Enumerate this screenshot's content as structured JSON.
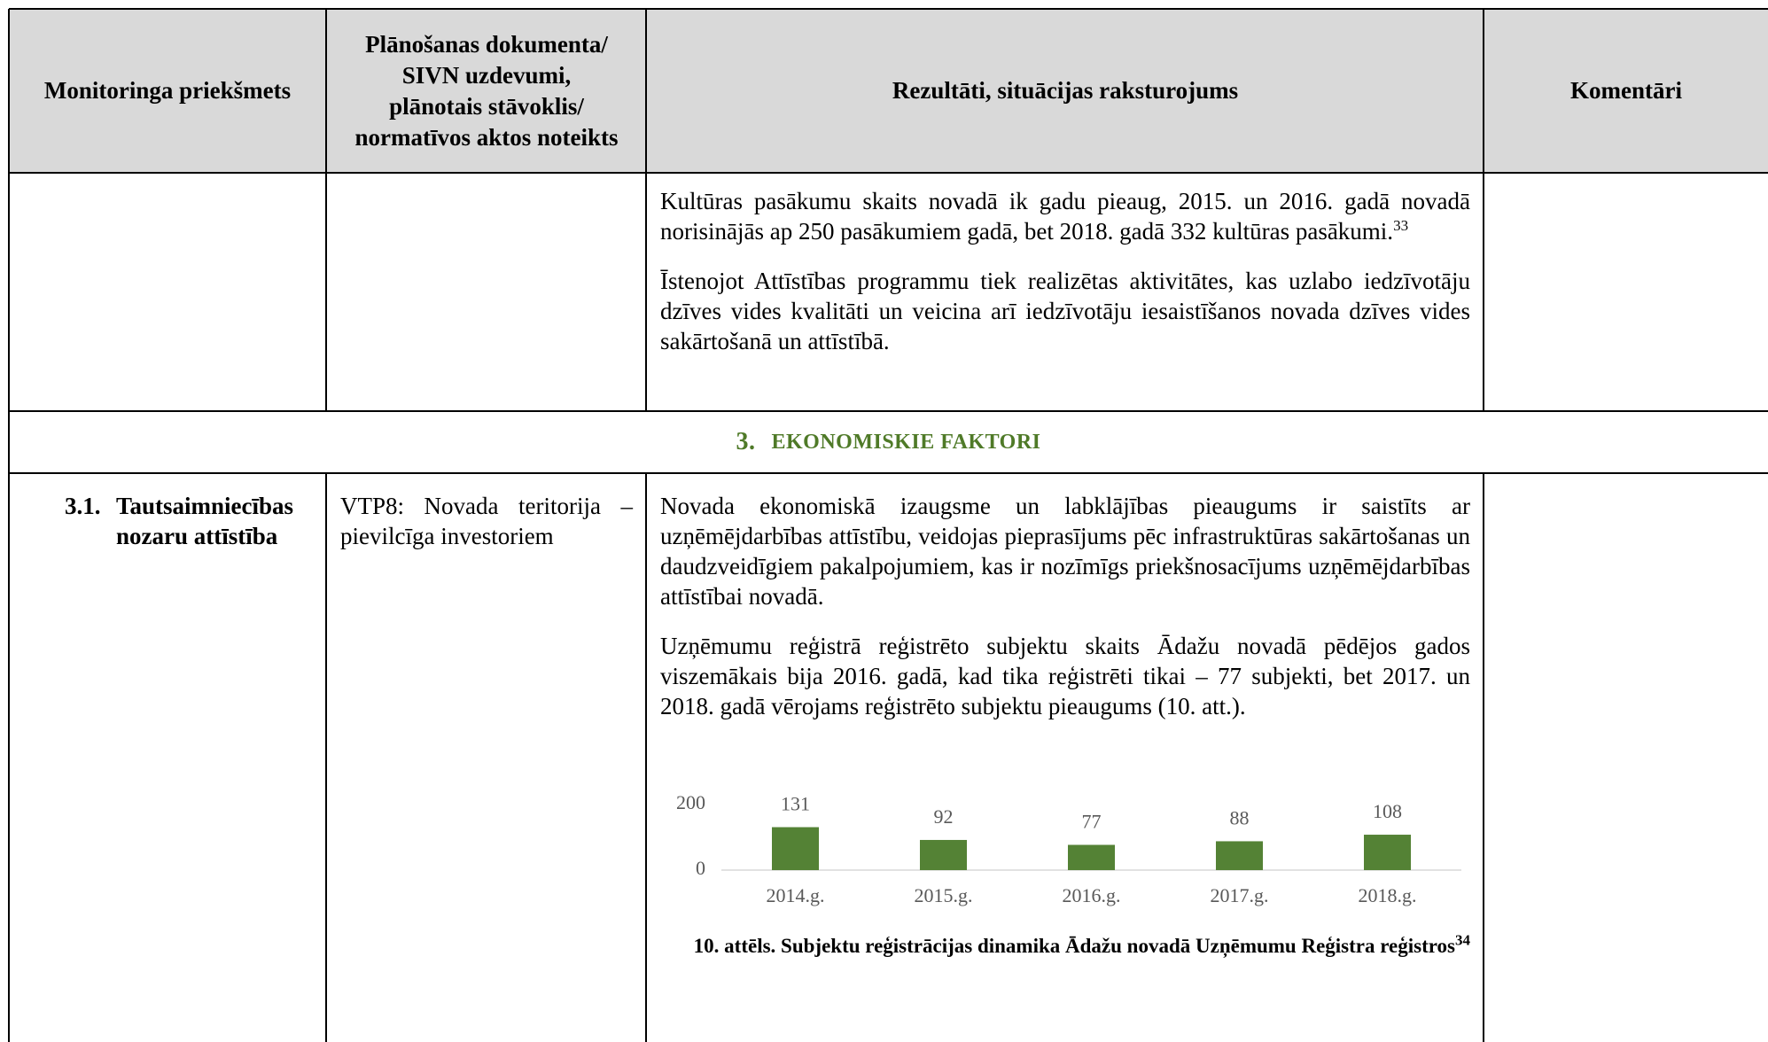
{
  "header": [
    "Monitoringa priekšmets",
    "Plānošanas dokumenta/ SIVN uzdevumi, plānotais stāvoklis/ normatīvos aktos noteikts",
    "Rezultāti, situācijas raksturojums",
    "Komentāri"
  ],
  "rows": [
    {
      "results": [
        {
          "text": "Kultūras pasākumu skaits novadā ik gadu pieaug, 2015. un 2016. gadā novadā norisinājās ap 250 pasākumiem gadā, bet 2018. gadā 332 kultūras pasākumi.",
          "footnote": "33"
        },
        {
          "text": "Īstenojot Attīstības programmu tiek realizētas aktivitātes, kas uzlabo iedzīvotāju dzīves vides kvalitāti un veicina arī iedzīvotāju iesaistīšanos novada dzīves vides sakārtošanā un attīstībā."
        }
      ]
    },
    {
      "section_number": "3.",
      "section_title": "EKONOMISKIE FAKTORI"
    },
    {
      "subject_number": "3.1.",
      "subject": "Tautsaimniecības nozaru attīstība",
      "task": "VTP8: Novada teritorija – pievilcīga investoriem",
      "results": [
        {
          "text": "Novada ekonomiskā izaugsme un labklājības pieaugums ir saistīts ar uzņēmējdarbības attīstību, veidojas pieprasījums pēc infrastruktūras sakārtošanas un daudzveidīgiem pakalpojumiem, kas ir nozīmīgs priekšnosacījums uzņēmējdarbības attīstībai novadā."
        },
        {
          "text": "Uzņēmumu reģistrā reģistrēto subjektu skaits Ādažu novadā pēdējos gados viszemākais bija 2016. gadā, kad tika reģistrēti tikai – 77 subjekti, bet 2017. un 2018. gadā vērojams reģistrēto subjektu pieaugums (10. att.)."
        }
      ],
      "figure": {
        "chart_data": {
          "type": "bar",
          "categories": [
            "2014.g.",
            "2015.g.",
            "2016.g.",
            "2017.g.",
            "2018.g."
          ],
          "values": [
            131,
            92,
            77,
            88,
            108
          ],
          "color": "#548235",
          "ylim": [
            0,
            200
          ],
          "yticks": [
            0,
            200
          ]
        },
        "caption_number": "10. attēls.",
        "caption": "Subjektu reģistrācijas dinamika Ādažu novadā Uzņēmumu Reģistra reģistros",
        "caption_footnote": "34"
      }
    }
  ]
}
